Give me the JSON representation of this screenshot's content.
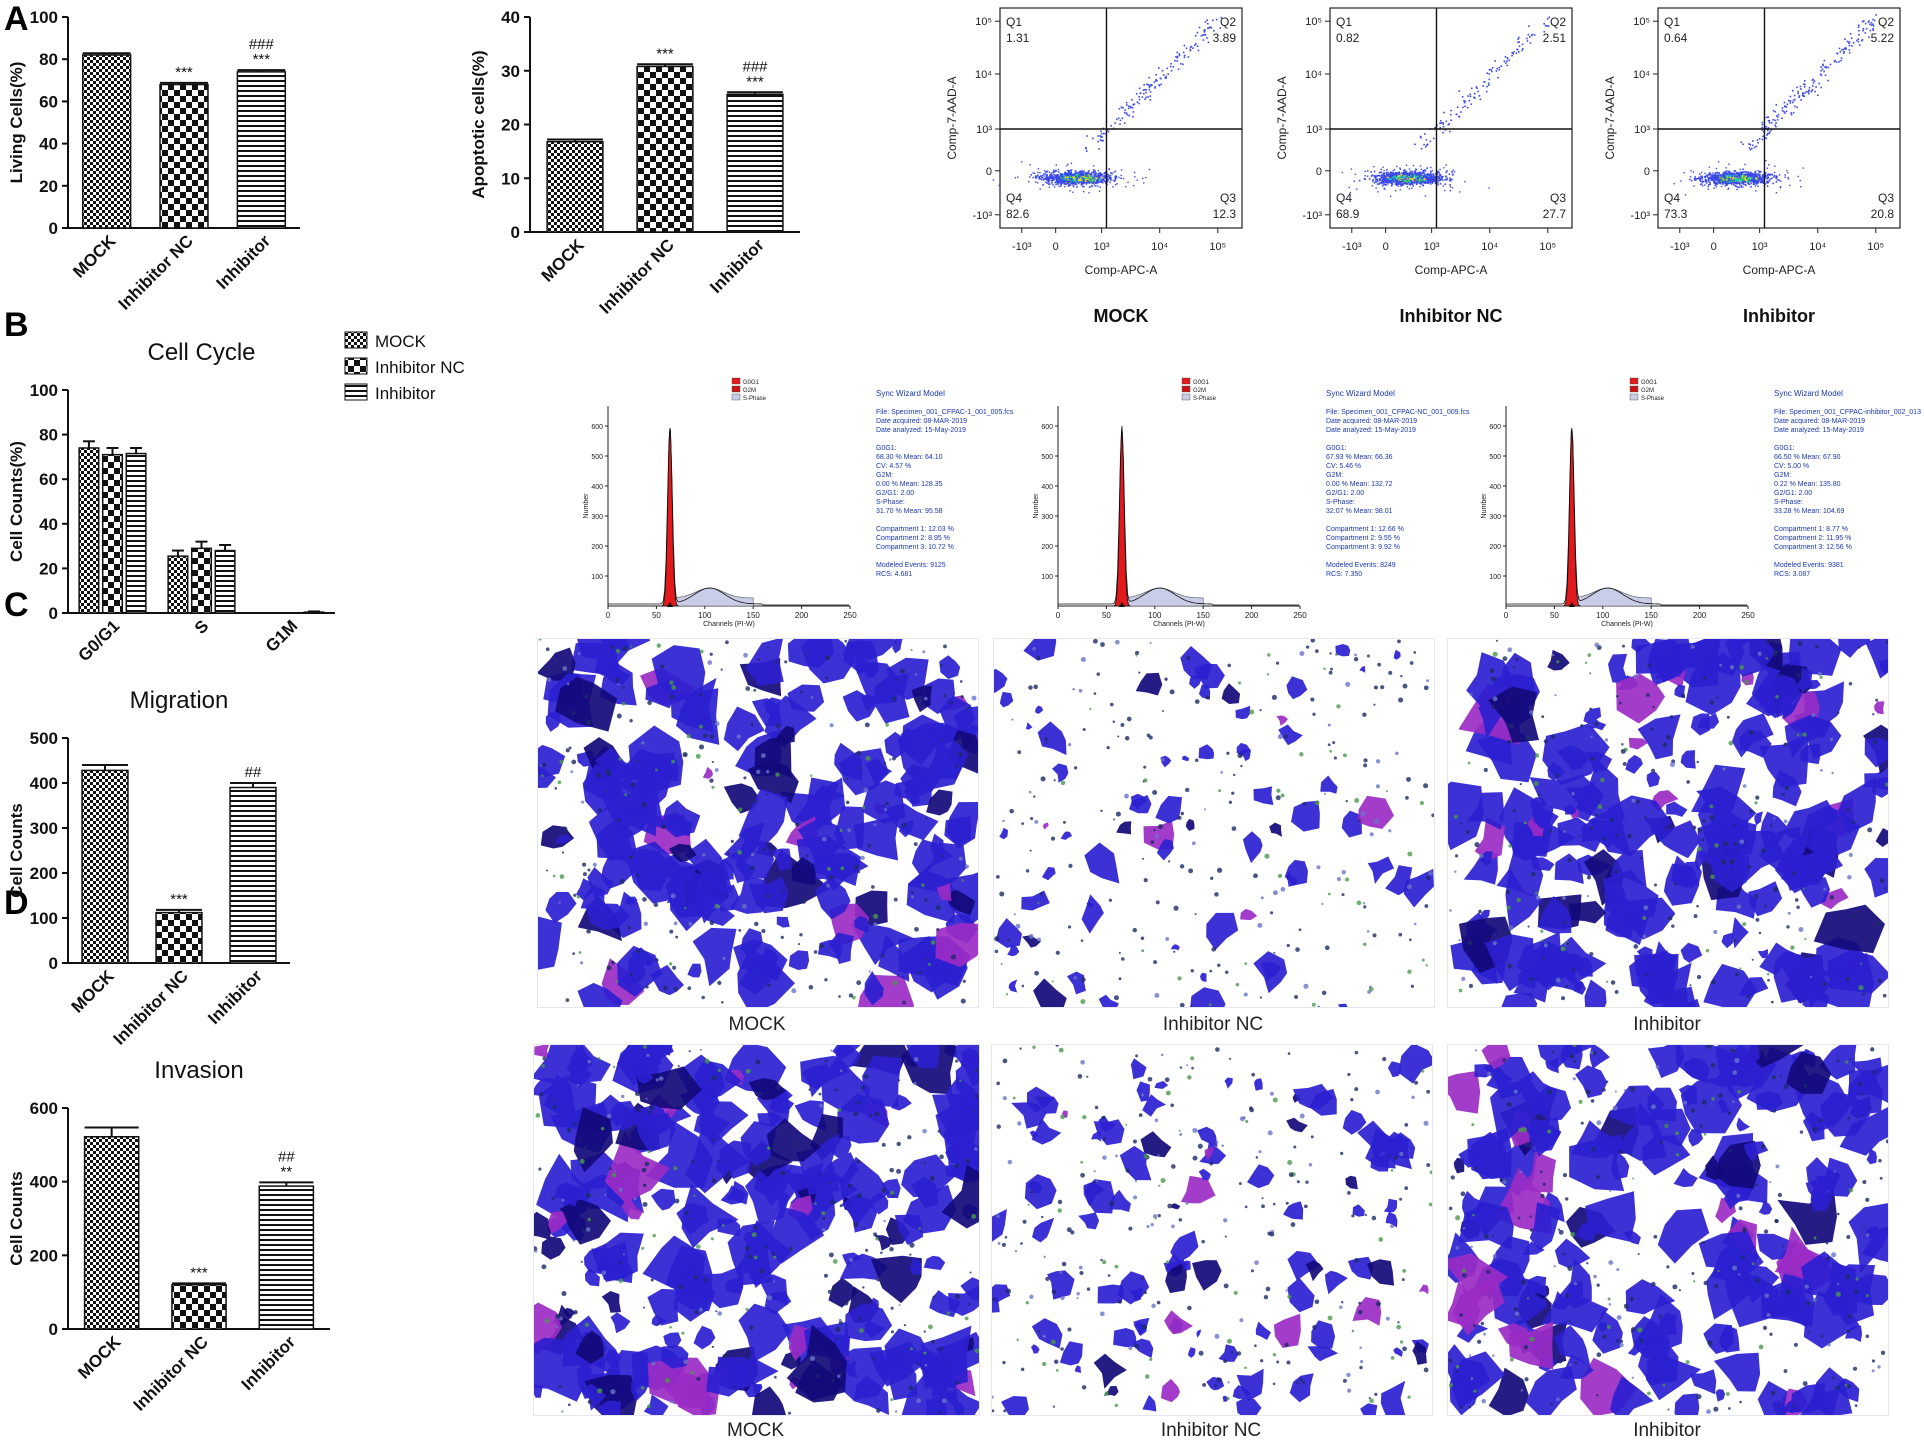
{
  "panel_letters": {
    "a": "A",
    "b": "B",
    "c": "C",
    "d": "D"
  },
  "colors": {
    "stain": "#2b1fd0",
    "stain_dark": "#120a7a",
    "stain_magenta": "#9a2bc4",
    "flow_dot": "#3a49e8",
    "peak_red": "#e31a1c",
    "axis": "#111111"
  },
  "chart_data": [
    {
      "id": "living",
      "type": "bar",
      "title": "",
      "categories": [
        "MOCK",
        "Inhibitor NC",
        "Inhibitor"
      ],
      "values": [
        82,
        68,
        74
      ],
      "errors": [
        0.8,
        0.8,
        0.8
      ],
      "patterns": [
        "check",
        "check-large",
        "hstripe"
      ],
      "sig": [
        "",
        "***",
        "###\n***"
      ],
      "xlabel": "",
      "ylabel": "Living Cells(%)",
      "ylim": [
        0,
        100
      ],
      "yticks": [
        0,
        20,
        40,
        60,
        80,
        100
      ]
    },
    {
      "id": "apoptotic",
      "type": "bar",
      "title": "",
      "categories": [
        "MOCK",
        "Inhibitor NC",
        "Inhibitor"
      ],
      "values": [
        16.8,
        30.8,
        25.6
      ],
      "errors": [
        0.4,
        0.4,
        0.4
      ],
      "patterns": [
        "check",
        "check-large",
        "hstripe"
      ],
      "sig": [
        "",
        "***",
        "###\n***"
      ],
      "xlabel": "",
      "ylabel": "Apoptotic cells(%)",
      "ylim": [
        0,
        40
      ],
      "yticks": [
        0,
        10,
        20,
        30,
        40
      ]
    },
    {
      "id": "cellcycle",
      "type": "bar",
      "title": "Cell Cycle",
      "categories": [
        "G0/G1",
        "S",
        "G1M"
      ],
      "series": [
        {
          "name": "MOCK",
          "pattern": "check",
          "values": [
            74,
            25.5,
            0
          ],
          "errors": [
            3,
            2.5,
            0
          ]
        },
        {
          "name": "Inhibitor NC",
          "pattern": "check-large",
          "values": [
            71,
            29,
            0
          ],
          "errors": [
            3,
            3,
            0
          ]
        },
        {
          "name": "Inhibitor",
          "pattern": "hstripe",
          "values": [
            71.5,
            28,
            0.4
          ],
          "errors": [
            2.5,
            2.5,
            0.3
          ]
        }
      ],
      "xlabel": "",
      "ylabel": "Cell Counts(%)",
      "ylim": [
        0,
        100
      ],
      "yticks": [
        0,
        20,
        40,
        60,
        80,
        100
      ],
      "legend": "top-right"
    },
    {
      "id": "migration",
      "type": "bar",
      "title": "Migration",
      "categories": [
        "MOCK",
        "Inhibitor NC",
        "Inhibitor"
      ],
      "values": [
        428,
        112,
        390
      ],
      "errors": [
        12,
        6,
        10
      ],
      "patterns": [
        "check",
        "check-large",
        "hstripe"
      ],
      "sig": [
        "",
        "***",
        "##"
      ],
      "xlabel": "",
      "ylabel": "Cell Counts",
      "ylim": [
        0,
        500
      ],
      "yticks": [
        0,
        100,
        200,
        300,
        400,
        500
      ]
    },
    {
      "id": "invasion",
      "type": "bar",
      "title": "Invasion",
      "categories": [
        "MOCK",
        "Inhibitor NC",
        "Inhibitor"
      ],
      "values": [
        522,
        120,
        388
      ],
      "errors": [
        25,
        4,
        10
      ],
      "patterns": [
        "check",
        "check-large",
        "hstripe"
      ],
      "sig": [
        "",
        "***",
        "##\n**"
      ],
      "xlabel": "",
      "ylabel": "Cell Counts",
      "ylim": [
        0,
        600
      ],
      "yticks": [
        0,
        200,
        400,
        600
      ]
    }
  ],
  "flow": {
    "xlabel": "Comp-APC-A",
    "ylabel": "Comp-7-AAD-A",
    "xticks": [
      "-10³",
      "0",
      "10³",
      "10⁴",
      "10⁵"
    ],
    "yticks": [
      "10⁵",
      "10⁴",
      "10³",
      "0",
      "-10³"
    ],
    "plots": [
      {
        "label": "MOCK",
        "q1": "1.31",
        "q2": "3.89",
        "q3": "12.3",
        "q4": "82.6"
      },
      {
        "label": "Inhibitor NC",
        "q1": "0.82",
        "q2": "2.51",
        "q3": "27.7",
        "q4": "68.9"
      },
      {
        "label": "Inhibitor",
        "q1": "0.64",
        "q2": "5.22",
        "q3": "20.8",
        "q4": "73.3"
      }
    ]
  },
  "histograms": [
    {
      "title": "Sync Wizard Model",
      "legend": [
        "G0G1",
        "G2M",
        "S-Phase"
      ],
      "xlabel": "Channels (PI-W)",
      "ylabel": "Number",
      "xticks": [
        "0",
        "50",
        "100",
        "150",
        "200",
        "250"
      ],
      "yticks": [
        "100",
        "200",
        "300",
        "400",
        "500",
        "600"
      ],
      "lines": [
        "File: Specimen_001_CFPAC-1_001_005.fcs",
        "Date acquired: 08-MAR-2019",
        "Date analyzed: 15-May-2019",
        "",
        "G0G1:",
        "  68.30 %    Mean: 64.10",
        "  CV: 4.57 %",
        "G2M:",
        "  0.00 %     Mean: 128.35",
        "  G2/G1: 2.00",
        "S-Phase:",
        "  31.70 %    Mean: 95.58",
        "",
        "  Compartment 1:  12.03 %",
        "  Compartment 2:   8.95 %",
        "  Compartment 3:  10.72 %",
        "",
        "Modeled Events: 9125",
        "RCS: 4.681"
      ]
    },
    {
      "title": "Sync Wizard Model",
      "legend": [
        "G0G1",
        "G2M",
        "S-Phase"
      ],
      "xlabel": "Channels (PI-W)",
      "ylabel": "Number",
      "xticks": [
        "0",
        "50",
        "100",
        "150",
        "200",
        "250"
      ],
      "yticks": [
        "100",
        "200",
        "300",
        "400",
        "500",
        "600"
      ],
      "lines": [
        "File: Specimen_001_CFPAC-NC_001_009.fcs",
        "Date acquired: 08-MAR-2019",
        "Date analyzed: 15-May-2019",
        "",
        "G0G1:",
        "  67.93 %    Mean: 66.36",
        "  CV: 5.46 %",
        "G2M:",
        "  0.00 %     Mean: 132.72",
        "  G2/G1: 2.00",
        "S-Phase:",
        "  32.07 %    Mean: 98.01",
        "",
        "  Compartment 1:  12.66 %",
        "  Compartment 2:   9.55 %",
        "  Compartment 3:   9.92 %",
        "",
        "Modeled Events: 8249",
        "RCS: 7.350"
      ]
    },
    {
      "title": "Sync Wizard Model",
      "legend": [
        "G0G1",
        "G2M",
        "S-Phase"
      ],
      "xlabel": "Channels (PI-W)",
      "ylabel": "Number",
      "xticks": [
        "0",
        "50",
        "100",
        "150",
        "200",
        "250"
      ],
      "yticks": [
        "100",
        "200",
        "300",
        "400",
        "500",
        "600"
      ],
      "lines": [
        "File: Specimen_001_CFPAC-inhibitor_002_013",
        "Date acquired: 08-MAR-2019",
        "Date analyzed: 15-May-2019",
        "",
        "G0G1:",
        "  66.50 %    Mean: 67.90",
        "  CV: 5.00 %",
        "G2M:",
        "  0.22 %     Mean: 135.80",
        "  G2/G1: 2.00",
        "S-Phase:",
        "  33.28 %    Mean: 104.69",
        "",
        "  Compartment 1:   8.77 %",
        "  Compartment 2:  11.95 %",
        "  Compartment 3:  12.56 %",
        "",
        "Modeled Events: 9381",
        "RCS: 3.087"
      ]
    }
  ],
  "micro": {
    "migration_labels": [
      "MOCK",
      "Inhibitor NC",
      "Inhibitor"
    ],
    "invasion_labels": [
      "MOCK",
      "Inhibitor NC",
      "Inhibitor"
    ],
    "migration_density": [
      0.62,
      0.16,
      0.72
    ],
    "invasion_density": [
      0.85,
      0.32,
      0.6
    ]
  }
}
